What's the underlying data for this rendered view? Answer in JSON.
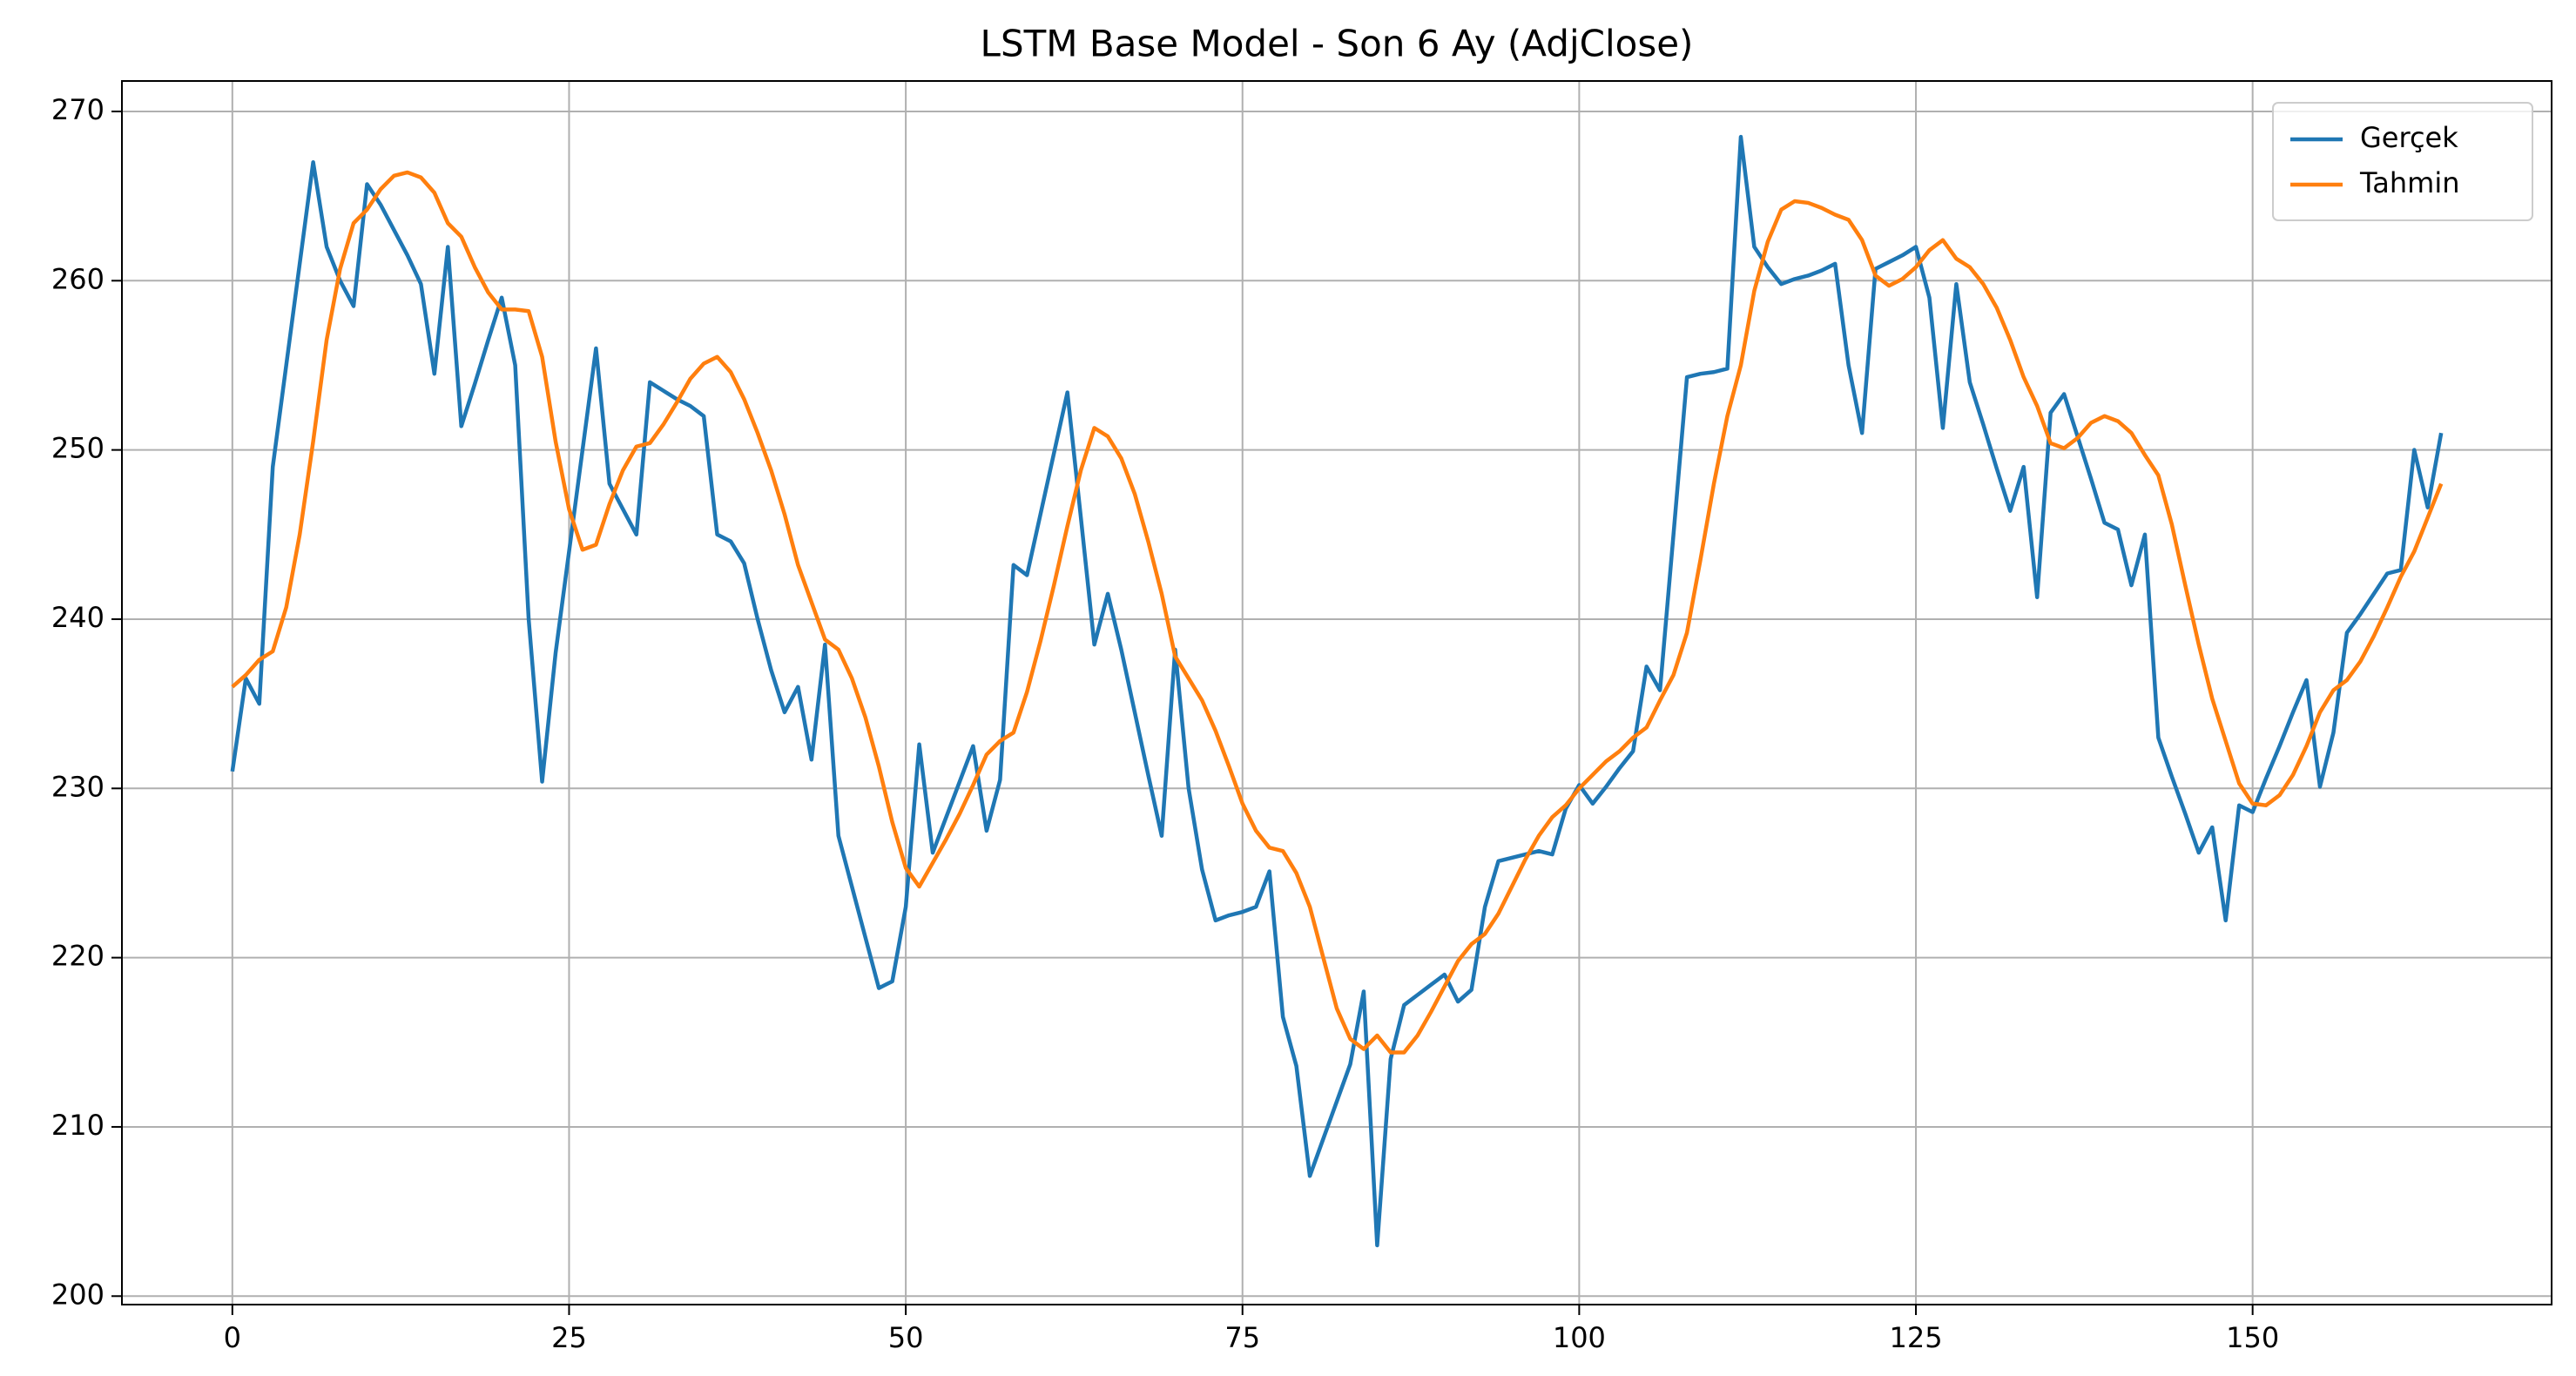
{
  "chart_data": {
    "type": "line",
    "title": "LSTM Base Model - Son 6 Ay (AdjClose)",
    "x": [
      0,
      1,
      2,
      3,
      4,
      5,
      6,
      7,
      8,
      9,
      10,
      11,
      12,
      13,
      14,
      15,
      16,
      17,
      18,
      19,
      20,
      21,
      22,
      23,
      24,
      25,
      26,
      27,
      28,
      29,
      30,
      31,
      32,
      33,
      34,
      35,
      36,
      37,
      38,
      39,
      40,
      41,
      42,
      43,
      44,
      45,
      46,
      47,
      48,
      49,
      50,
      51,
      52,
      53,
      54,
      55,
      56,
      57,
      58,
      59,
      60,
      61,
      62,
      63,
      64,
      65,
      66,
      67,
      68,
      69,
      70,
      71,
      72,
      73,
      74,
      75,
      76,
      77,
      78,
      79,
      80,
      81,
      82,
      83,
      84,
      85,
      86,
      87,
      88,
      89,
      90,
      91,
      92,
      93,
      94,
      95,
      96,
      97,
      98,
      99,
      100,
      101,
      102,
      103,
      104,
      105,
      106,
      107,
      108,
      109,
      110,
      111,
      112,
      113,
      114,
      115,
      116,
      117,
      118,
      119,
      120,
      121,
      122,
      123,
      124,
      125,
      126,
      127,
      128,
      129,
      130,
      131,
      132,
      133,
      134,
      135,
      136,
      137,
      138,
      139,
      140,
      141,
      142,
      143,
      144,
      145,
      146,
      147,
      148,
      149,
      150,
      151,
      152,
      153,
      154,
      155,
      156,
      157,
      158,
      159,
      160,
      161,
      162,
      163,
      164
    ],
    "series": [
      {
        "name": "Gerçek",
        "color": "#1f77b4",
        "values": [
          231,
          236.5,
          235,
          249,
          255,
          261,
          267,
          262,
          260,
          258.5,
          265.7,
          264.5,
          263,
          261.5,
          259.8,
          254.5,
          262,
          251.4,
          253.9,
          256.5,
          259,
          255,
          240,
          230.4,
          238,
          244,
          250,
          256,
          248,
          246.5,
          245,
          254,
          253.5,
          253,
          252.6,
          252,
          245,
          244.6,
          243.3,
          240,
          237,
          234.5,
          236,
          231.7,
          238.5,
          227.2,
          224.2,
          221.2,
          218.2,
          218.6,
          223,
          232.6,
          226.2,
          228.3,
          230.4,
          232.5,
          227.5,
          230.5,
          243.2,
          242.6,
          246.2,
          249.8,
          253.4,
          246,
          238.5,
          241.5,
          238.2,
          234.5,
          230.8,
          227.2,
          238.2,
          230,
          225.2,
          222.2,
          222.5,
          222.7,
          223,
          225.1,
          216.5,
          213.6,
          207.1,
          209.3,
          211.5,
          213.7,
          218,
          203,
          214,
          217.2,
          217.8,
          218.4,
          219,
          217.4,
          218.1,
          223,
          225.7,
          225.9,
          226.1,
          226.3,
          226.1,
          228.8,
          230.2,
          229.1,
          230.1,
          231.2,
          232.2,
          237.2,
          235.8,
          245,
          254.3,
          254.5,
          254.6,
          254.8,
          268.5,
          262,
          260.8,
          259.8,
          260.1,
          260.3,
          260.6,
          261,
          255,
          251,
          260.7,
          261.1,
          261.5,
          262,
          259,
          251.3,
          259.8,
          254,
          251.5,
          248.9,
          246.4,
          249,
          241.3,
          252.2,
          253.3,
          250.8,
          248.3,
          245.7,
          245.3,
          242,
          245,
          233,
          230.7,
          228.5,
          226.2,
          227.7,
          222.2,
          229,
          228.6,
          230.6,
          232.5,
          234.5,
          236.4,
          230.1,
          233.3,
          239.2,
          240.3,
          241.5,
          242.7,
          242.9,
          250,
          246.6,
          251
        ]
      },
      {
        "name": "Tahmin",
        "color": "#ff7f0e",
        "values": [
          236,
          236.7,
          237.6,
          238.1,
          240.7,
          245,
          250.5,
          256.5,
          260.7,
          263.4,
          264.2,
          265.4,
          266.2,
          266.4,
          266.1,
          265.2,
          263.4,
          262.6,
          260.8,
          259.3,
          258.3,
          258.3,
          258.2,
          255.5,
          250.5,
          246.5,
          244.1,
          244.4,
          246.8,
          248.8,
          250.2,
          250.4,
          251.5,
          252.8,
          254.2,
          255.1,
          255.5,
          254.6,
          253,
          251,
          248.8,
          246.2,
          243.2,
          241,
          238.8,
          238.2,
          236.5,
          234.2,
          231.3,
          228,
          225.3,
          224.2,
          225.6,
          227,
          228.5,
          230.2,
          232,
          232.8,
          233.3,
          235.7,
          238.7,
          242,
          245.5,
          248.8,
          251.3,
          250.8,
          249.5,
          247.4,
          244.6,
          241.5,
          237.8,
          236.5,
          235.2,
          233.4,
          231.3,
          229.1,
          227.5,
          226.5,
          226.3,
          225,
          223,
          220,
          217,
          215.2,
          214.6,
          215.4,
          214.4,
          214.4,
          215.4,
          216.8,
          218.3,
          219.8,
          220.8,
          221.4,
          222.6,
          224.2,
          225.8,
          227.2,
          228.3,
          229,
          230,
          230.8,
          231.6,
          232.2,
          233,
          233.6,
          235.2,
          236.7,
          239.2,
          243.5,
          248,
          252,
          255,
          259.4,
          262.3,
          264.2,
          264.7,
          264.6,
          264.3,
          263.9,
          263.6,
          262.4,
          260.3,
          259.7,
          260.1,
          260.8,
          261.8,
          262.4,
          261.3,
          260.8,
          259.8,
          258.4,
          256.5,
          254.3,
          252.6,
          250.4,
          250.1,
          250.7,
          251.6,
          252,
          251.7,
          251,
          249.7,
          248.5,
          245.6,
          242,
          238.5,
          235.3,
          232.8,
          230.3,
          229.1,
          229,
          229.6,
          230.8,
          232.5,
          234.5,
          235.8,
          236.4,
          237.5,
          239,
          240.7,
          242.5,
          244,
          246,
          248
        ]
      }
    ],
    "xlim": [
      -8.2,
      172.2
    ],
    "ylim": [
      199.5,
      271.8
    ],
    "xticks": [
      0,
      25,
      50,
      75,
      100,
      125,
      150
    ],
    "yticks": [
      200,
      210,
      220,
      230,
      240,
      250,
      260,
      270
    ],
    "grid": true,
    "legend": "upper right"
  }
}
